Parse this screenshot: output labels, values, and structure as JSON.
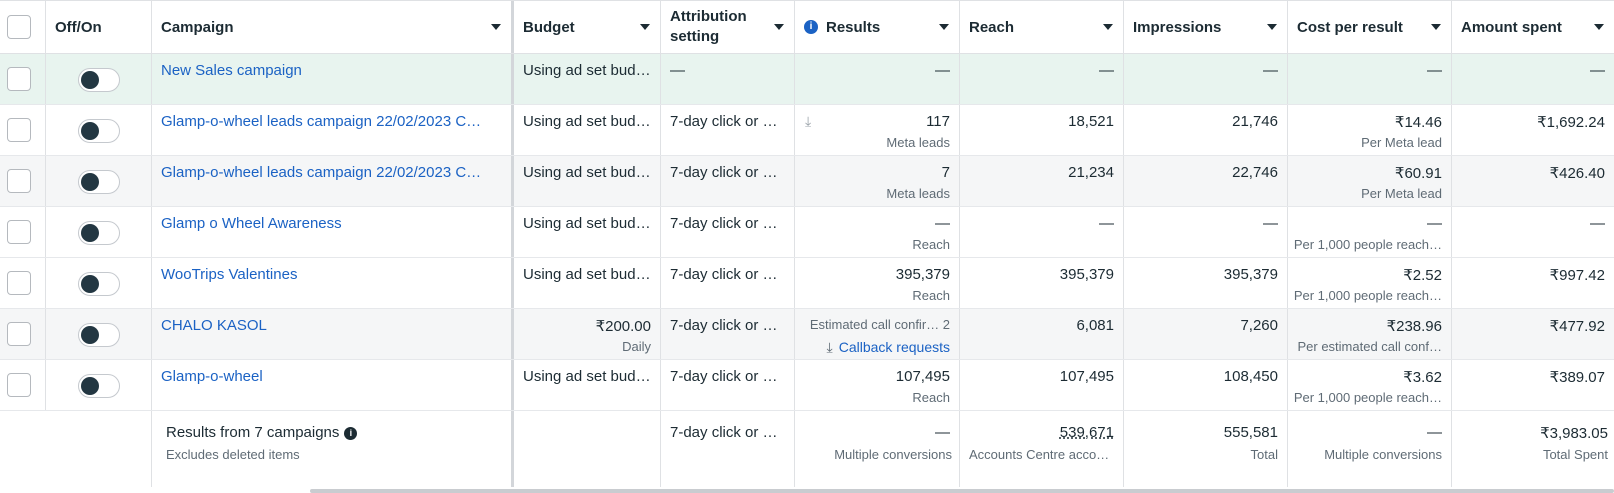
{
  "headers": [
    {
      "key": "off_on",
      "label": "Off/On"
    },
    {
      "key": "campaign",
      "label": "Campaign"
    },
    {
      "key": "budget",
      "label": "Budget"
    },
    {
      "key": "attribution_line1",
      "label": "Attribution"
    },
    {
      "key": "attribution_line2",
      "label": "setting"
    },
    {
      "key": "results",
      "label": "Results"
    },
    {
      "key": "reach",
      "label": "Reach"
    },
    {
      "key": "impressions",
      "label": "Impressions"
    },
    {
      "key": "cost_per_result",
      "label": "Cost per result"
    },
    {
      "key": "amount_spent",
      "label": "Amount spent"
    }
  ],
  "rows": [
    {
      "name": "New Sales campaign",
      "budget": "Using ad set bud…",
      "attribution": "—",
      "results": "—",
      "results_sub": "",
      "reach": "—",
      "impressions": "—",
      "cost": "—",
      "cost_sub": "",
      "spent": "—"
    },
    {
      "name": "Glamp-o-wheel leads campaign 22/02/2023 C…",
      "budget": "Using ad set bud…",
      "attribution": "7-day click or …",
      "results": "117",
      "results_sub": "Meta leads",
      "reach": "18,521",
      "impressions": "21,746",
      "cost": "₹14.46",
      "cost_sub": "Per Meta lead",
      "spent": "₹1,692.24"
    },
    {
      "name": "Glamp-o-wheel leads campaign 22/02/2023 C…",
      "budget": "Using ad set bud…",
      "attribution": "7-day click or …",
      "results": "7",
      "results_sub": "Meta leads",
      "reach": "21,234",
      "impressions": "22,746",
      "cost": "₹60.91",
      "cost_sub": "Per Meta lead",
      "spent": "₹426.40"
    },
    {
      "name": "Glamp o Wheel Awareness",
      "budget": "Using ad set bud…",
      "attribution": "7-day click or …",
      "results": "—",
      "results_sub": "Reach",
      "reach": "—",
      "impressions": "—",
      "cost": "—",
      "cost_sub": "Per 1,000 people reach…",
      "spent": "—"
    },
    {
      "name": "WooTrips Valentines",
      "budget": "Using ad set bud…",
      "attribution": "7-day click or …",
      "results": "395,379",
      "results_sub": "Reach",
      "reach": "395,379",
      "impressions": "395,379",
      "cost": "₹2.52",
      "cost_sub": "Per 1,000 people reach…",
      "spent": "₹997.42"
    },
    {
      "name": "CHALO KASOL",
      "budget": "₹200.00",
      "budget_sub": "Daily",
      "attribution": "7-day click or …",
      "results": "Estimated call confir…  2",
      "results_sub": "Callback requests",
      "reach": "6,081",
      "impressions": "7,260",
      "cost": "₹238.96",
      "cost_sub": "Per estimated call conf…",
      "spent": "₹477.92"
    },
    {
      "name": "Glamp-o-wheel",
      "budget": "Using ad set bud…",
      "attribution": "7-day click or …",
      "results": "107,495",
      "results_sub": "Reach",
      "reach": "107,495",
      "impressions": "108,450",
      "cost": "₹3.62",
      "cost_sub": "Per 1,000 people reach…",
      "spent": "₹389.07"
    }
  ],
  "footer": {
    "title": "Results from 7 campaigns",
    "subtitle": "Excludes deleted items",
    "attribution": "7-day click or …",
    "results": "—",
    "results_sub": "Multiple conversions",
    "reach": "539,671",
    "reach_sub": "Accounts Centre acco…",
    "impressions": "555,581",
    "impressions_sub": "Total",
    "cost": "—",
    "cost_sub": "Multiple conversions",
    "spent": "₹3,983.05",
    "spent_sub": "Total Spent"
  },
  "colors": {
    "link": "#1b62c4",
    "highlight_row": "#e8f4ef",
    "toggle_knob": "#233742"
  },
  "icons": {
    "results_header": "info-icon",
    "footer_title": "info-icon",
    "lead_row": "download-icon",
    "callback": "download-icon"
  }
}
